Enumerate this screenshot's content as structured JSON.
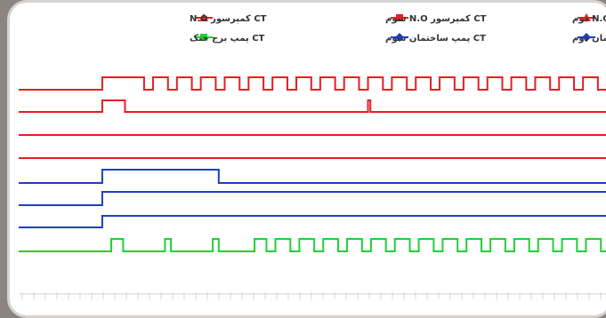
{
  "colors": {
    "red": "#e81c24",
    "blue": "#1f3fbf",
    "green": "#1ed136",
    "grid": "#d4d4d4"
  },
  "chart_data": {
    "type": "line",
    "title": "",
    "legend": [
      {
        "label": "CT کمپرسور N.O دوم",
        "color": "#e81c24",
        "marker": "triangle"
      },
      {
        "label": "CT کمپرسور N.O سوم",
        "color": "#e81c24",
        "marker": "square"
      },
      {
        "label": "CT کمپرسور N.O",
        "color": "#e81c24",
        "marker": "triangle"
      },
      {
        "label": "CT پمپ ساختمان دوم",
        "color": "#1f3fbf",
        "marker": "diamond"
      },
      {
        "label": "CT پمپ ساختمان سوم",
        "color": "#1f3fbf",
        "marker": "diamond"
      },
      {
        "label": "CT پمپ برج خنک",
        "color": "#1ed136",
        "marker": "square"
      }
    ],
    "series": [
      {
        "color": "#e81c24",
        "high_intervals": [
          [
            0.14,
            0.21
          ],
          [
            0.225,
            0.25
          ],
          [
            0.265,
            0.29
          ],
          [
            0.305,
            0.33
          ],
          [
            0.345,
            0.37
          ],
          [
            0.385,
            0.41
          ],
          [
            0.425,
            0.45
          ],
          [
            0.465,
            0.49
          ],
          [
            0.505,
            0.53
          ],
          [
            0.545,
            0.57
          ],
          [
            0.585,
            0.61
          ],
          [
            0.625,
            0.65
          ],
          [
            0.665,
            0.69
          ],
          [
            0.705,
            0.73
          ],
          [
            0.745,
            0.77
          ],
          [
            0.785,
            0.81
          ],
          [
            0.825,
            0.85
          ],
          [
            0.865,
            0.89
          ],
          [
            0.905,
            0.93
          ],
          [
            0.945,
            0.97
          ],
          [
            0.985,
            1.0
          ]
        ]
      },
      {
        "color": "#e81c24",
        "high_intervals": [
          [
            0.14,
            0.178
          ],
          [
            0.585,
            0.589
          ]
        ]
      },
      {
        "color": "#e81c24",
        "high_intervals": []
      },
      {
        "color": "#e81c24",
        "high_intervals": []
      },
      {
        "color": "#1f3fbf",
        "high_intervals": [
          [
            0.14,
            0.335
          ]
        ]
      },
      {
        "color": "#1f3fbf",
        "high_intervals": [
          [
            0.14,
            1.0
          ]
        ]
      },
      {
        "color": "#1f3fbf",
        "high_intervals": [
          [
            0.14,
            1.0
          ]
        ]
      },
      {
        "color": "#1ed136",
        "high_intervals": [
          [
            0.155,
            0.175
          ],
          [
            0.245,
            0.255
          ],
          [
            0.325,
            0.335
          ],
          [
            0.395,
            0.415
          ],
          [
            0.43,
            0.455
          ],
          [
            0.47,
            0.495
          ],
          [
            0.51,
            0.535
          ],
          [
            0.55,
            0.575
          ],
          [
            0.59,
            0.615
          ],
          [
            0.63,
            0.655
          ],
          [
            0.67,
            0.695
          ],
          [
            0.71,
            0.735
          ],
          [
            0.75,
            0.775
          ],
          [
            0.79,
            0.815
          ],
          [
            0.83,
            0.855
          ],
          [
            0.87,
            0.895
          ],
          [
            0.91,
            0.935
          ],
          [
            0.95,
            0.975
          ],
          [
            0.99,
            1.0
          ]
        ]
      }
    ],
    "grid": false,
    "legend_position": "top"
  }
}
